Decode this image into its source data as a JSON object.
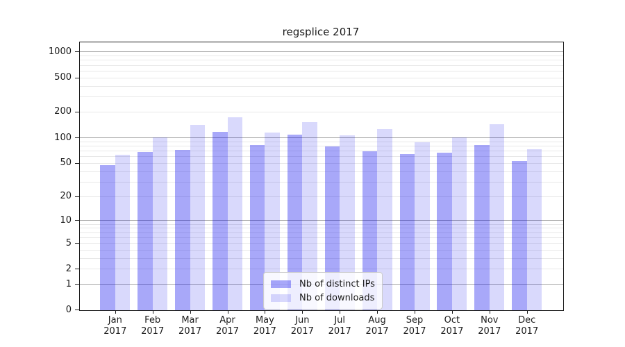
{
  "colors": {
    "background": "#ffffff",
    "axis": "#1a1a1a",
    "major_grid": "#a3a3a3",
    "minor_grid": "#e8e8e8",
    "bar_distinct_ips": "#a9a9f9",
    "bar_downloads": "#d9d9fc"
  },
  "chart_data": {
    "type": "bar",
    "title": "regsplice 2017",
    "xlabel": "",
    "ylabel": "",
    "yscale": "log1p",
    "grid": true,
    "legend_position": "lower center",
    "categories": [
      "Jan 2017",
      "Feb 2017",
      "Mar 2017",
      "Apr 2017",
      "May 2017",
      "Jun 2017",
      "Jul 2017",
      "Aug 2017",
      "Sep 2017",
      "Oct 2017",
      "Nov 2017",
      "Dec 2017"
    ],
    "series": [
      {
        "name": "Nb of distinct IPs",
        "color": "#0000ee",
        "alpha": 0.34,
        "values": [
          47,
          67,
          71,
          116,
          81,
          107,
          78,
          69,
          64,
          66,
          82,
          53
        ]
      },
      {
        "name": "Nb of downloads",
        "color": "#0000ee",
        "alpha": 0.15,
        "values": [
          63,
          100,
          140,
          173,
          114,
          150,
          106,
          125,
          87,
          100,
          142,
          72
        ]
      }
    ],
    "y_ticks": [
      0,
      1,
      2,
      5,
      10,
      20,
      50,
      100,
      200,
      500,
      1000
    ],
    "ylim": [
      0,
      1270
    ]
  }
}
